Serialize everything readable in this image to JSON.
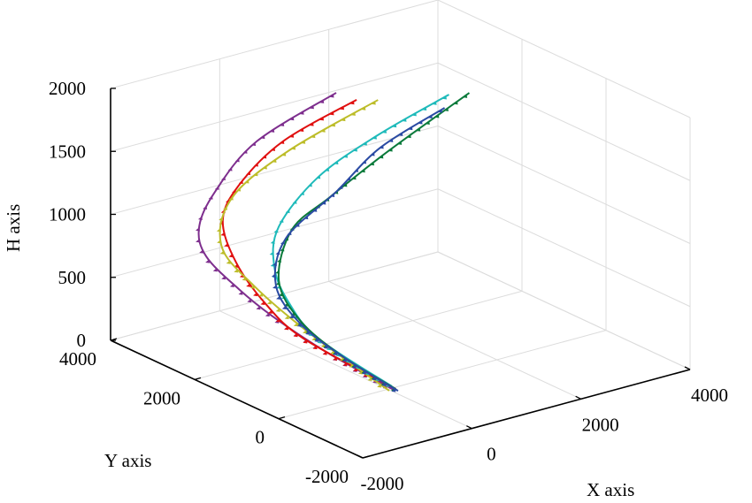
{
  "chart_data": {
    "type": "line3d",
    "title": "",
    "xlabel": "X axis",
    "ylabel": "Y axis",
    "zlabel": "H axis",
    "xlim": [
      -2000,
      4000
    ],
    "ylim": [
      -2000,
      4000
    ],
    "zlim": [
      0,
      2000
    ],
    "xticks": [
      "-2000",
      "0",
      "2000",
      "4000"
    ],
    "yticks": [
      "-2000",
      "0",
      "2000",
      "4000"
    ],
    "zticks": [
      "0",
      "500",
      "1000",
      "1500",
      "2000"
    ],
    "grid": true,
    "view": "3d",
    "series": [
      {
        "color": "#7E2F8E",
        "marker": "triangle",
        "x": [
          510,
          -690,
          -1480,
          -1610,
          -1310,
          -960,
          -550,
          -250,
          50
        ],
        "y": [
          1890,
          2230,
          2190,
          2400,
          2620,
          2300,
          2050,
          1180,
          -120
        ],
        "h": [
          2000,
          1700,
          1400,
          1100,
          800,
          550,
          330,
          150,
          0
        ]
      },
      {
        "color": "#E01010",
        "marker": "triangle",
        "x": [
          730,
          -220,
          -740,
          -860,
          -800,
          -600,
          -280,
          100
        ],
        "y": [
          1690,
          2210,
          2590,
          2810,
          2570,
          2140,
          1640,
          -60
        ],
        "h": [
          1950,
          1650,
          1300,
          1000,
          700,
          420,
          180,
          0
        ]
      },
      {
        "color": "#BDBD2A",
        "marker": "triangle",
        "x": [
          1130,
          -60,
          -630,
          -850,
          -480,
          -140,
          -20
        ],
        "y": [
          1700,
          2270,
          2880,
          2860,
          2570,
          1680,
          -60
        ],
        "h": [
          1900,
          1550,
          1150,
          800,
          480,
          200,
          0
        ]
      },
      {
        "color": "#1FBABA",
        "marker": "triangle",
        "x": [
          1930,
          1030,
          410,
          -370,
          -490,
          -320,
          -110,
          120
        ],
        "y": [
          1050,
          1580,
          2180,
          2120,
          2060,
          1930,
          1510,
          60
        ],
        "h": [
          1950,
          1650,
          1300,
          1000,
          700,
          420,
          180,
          0
        ]
      },
      {
        "color": "#0B7A3B",
        "marker": "triangle",
        "x": [
          2210,
          790,
          30,
          -280,
          -750,
          -630,
          -270,
          100
        ],
        "y": [
          930,
          990,
          1420,
          1920,
          1620,
          1260,
          730,
          -60
        ],
        "h": [
          1950,
          1650,
          1300,
          1000,
          700,
          420,
          180,
          0
        ]
      },
      {
        "color": "#2B4BA3",
        "marker": "triangle",
        "x": [
          1550,
          760,
          240,
          -570,
          -910,
          -710,
          -300,
          80
        ],
        "y": [
          660,
          1160,
          1540,
          1690,
          1480,
          1140,
          570,
          -140
        ],
        "h": [
          1950,
          1650,
          1300,
          1000,
          700,
          420,
          180,
          0
        ]
      }
    ]
  }
}
